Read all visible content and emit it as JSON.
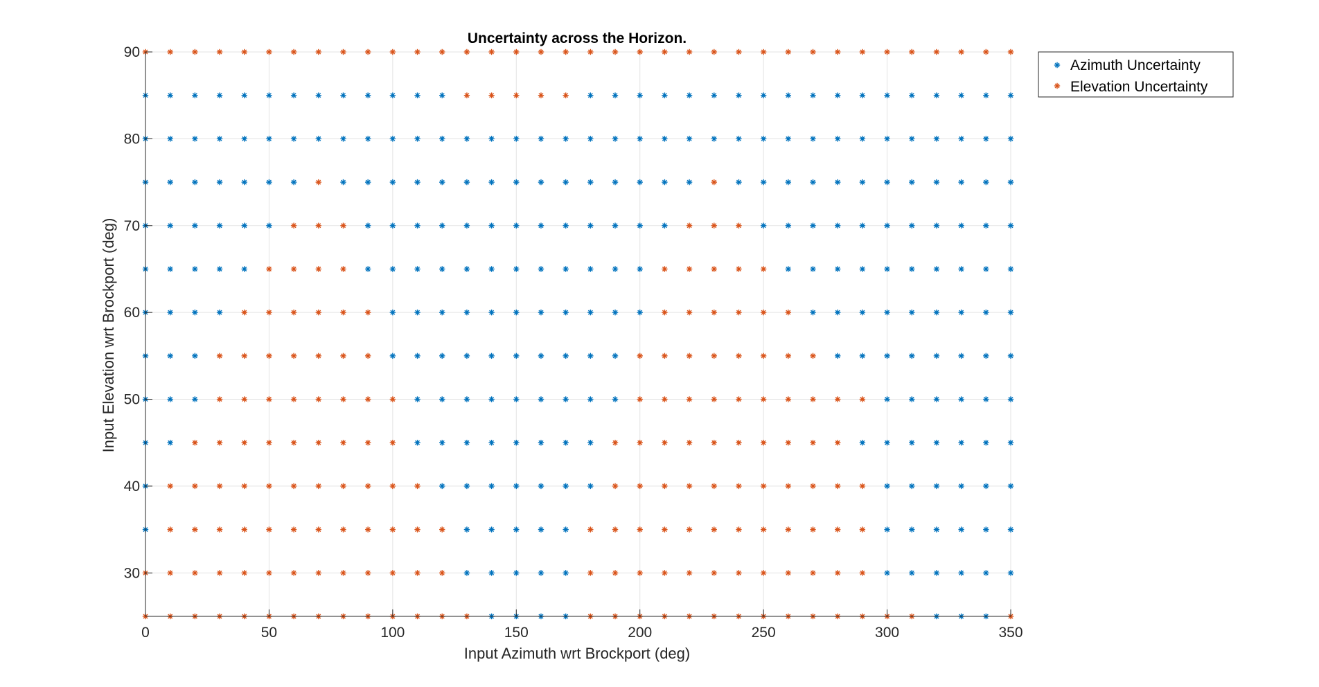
{
  "chart_data": {
    "type": "scatter",
    "title": "Uncertainty across the Horizon.",
    "xlabel": "Input Azimuth wrt Brockport (deg)",
    "ylabel": "Input Elevation wrt Brockport (deg)",
    "xlim": [
      0,
      350
    ],
    "ylim": [
      25,
      90
    ],
    "xticks": [
      0,
      50,
      100,
      150,
      200,
      250,
      300,
      350
    ],
    "yticks": [
      30,
      40,
      50,
      60,
      70,
      80,
      90
    ],
    "grid": true,
    "legend_position": "outside-top-right",
    "marker": "*",
    "azimuth_grid": [
      0,
      10,
      20,
      30,
      40,
      50,
      60,
      70,
      80,
      90,
      100,
      110,
      120,
      130,
      140,
      150,
      160,
      170,
      180,
      190,
      200,
      210,
      220,
      230,
      240,
      250,
      260,
      270,
      280,
      290,
      300,
      310,
      320,
      330,
      340,
      350
    ],
    "series": [
      {
        "name": "Azimuth Uncertainty",
        "color": "#0072BD"
      },
      {
        "name": "Elevation Uncertainty",
        "color": "#D95319"
      }
    ],
    "rows": [
      {
        "elevation": 90,
        "pattern": "EEEEEEEEEEEEEEEEEEEEEEEEEEEEEEEEEEEE"
      },
      {
        "elevation": 85,
        "pattern": "AAAAAAAAAAAAAEEEEEAAAAAAAAAAAAAAAAAA"
      },
      {
        "elevation": 80,
        "pattern": "AAAAAAAAAAAAAAAAAAAAAAAAAAAAAAAAAAAA"
      },
      {
        "elevation": 75,
        "pattern": "AAAAAAAEAAAAAAAAAAAAAAAEAAAAAAAAAAAA"
      },
      {
        "elevation": 70,
        "pattern": "AAAAAAEEEAAAAAAAAAAAAAEEEAAAAAAAAAAA"
      },
      {
        "elevation": 65,
        "pattern": "AAAAAEEEEAAAAAAAAAAAAEEEEEAAAAAAAAAA"
      },
      {
        "elevation": 60,
        "pattern": "AAAAEEEEEEAAAAAAAAAAAEEEEEEAAAAAAAAA"
      },
      {
        "elevation": 55,
        "pattern": "AAAEEEEEEEAAAAAAAAAAEEEEEEEEAAAAAAAA"
      },
      {
        "elevation": 50,
        "pattern": "AAAEEEEEEEEAAAAAAAAAEEEEEEEEEEAAAAAA"
      },
      {
        "elevation": 45,
        "pattern": "AAEEEEEEEEEAAAAAAAAEEEEEEEEEEAAAAAAA"
      },
      {
        "elevation": 40,
        "pattern": "AEEEEEEEEEEEAAAAAAAEEEEEEEEEEEAAAAAA"
      },
      {
        "elevation": 35,
        "pattern": "AEEEEEEEEEEEEAAAAAEEEEEEEEEEEEAAAAAA"
      },
      {
        "elevation": 30,
        "pattern": "EEEEEEEEEEEEEAAAAAEEEEEEEEEEEEAAAAAA"
      },
      {
        "elevation": 25,
        "pattern": "EEEEEEEEEEEEEEAAAAEEEEEEEEEEEEEEAAAE"
      }
    ]
  }
}
